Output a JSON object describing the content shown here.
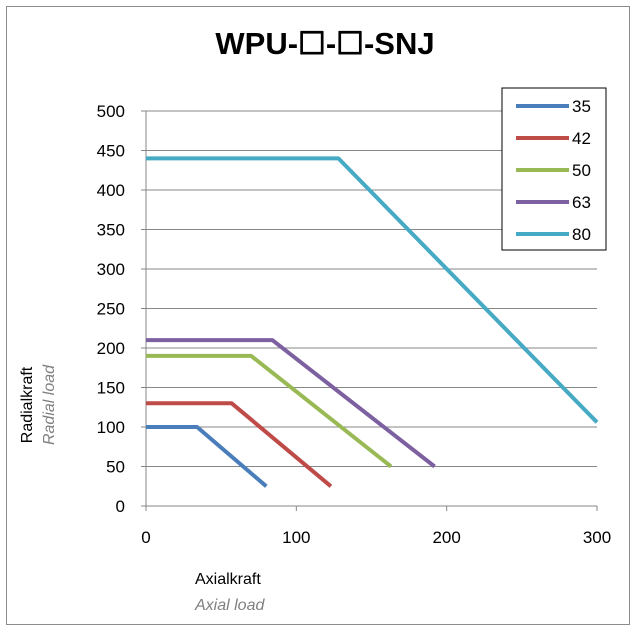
{
  "chart_data": {
    "type": "line",
    "title": "WPU-☐-☐-SNJ",
    "xlabel": "Axialkraft",
    "xlabel_secondary": "Axial load",
    "ylabel": "Radialkraft",
    "ylabel_secondary": "Radial load",
    "xlim": [
      0,
      300
    ],
    "ylim": [
      0,
      500
    ],
    "x_ticks": [
      0,
      100,
      200,
      300
    ],
    "y_ticks": [
      0,
      50,
      100,
      150,
      200,
      250,
      300,
      350,
      400,
      450,
      500
    ],
    "grid": "horizontal",
    "legend_position": "top-right",
    "series": [
      {
        "name": "35",
        "color": "#4a7ebb",
        "points": [
          [
            0,
            100
          ],
          [
            34,
            100
          ],
          [
            80,
            25
          ]
        ]
      },
      {
        "name": "42",
        "color": "#be4b48",
        "points": [
          [
            0,
            130
          ],
          [
            57,
            130
          ],
          [
            123,
            25
          ]
        ]
      },
      {
        "name": "50",
        "color": "#98b954",
        "points": [
          [
            0,
            190
          ],
          [
            70,
            190
          ],
          [
            163,
            50
          ]
        ]
      },
      {
        "name": "63",
        "color": "#7d60a0",
        "points": [
          [
            0,
            210
          ],
          [
            84,
            210
          ],
          [
            192,
            50
          ]
        ]
      },
      {
        "name": "80",
        "color": "#46aac5",
        "points": [
          [
            0,
            440
          ],
          [
            128,
            440
          ],
          [
            300,
            106
          ]
        ]
      }
    ]
  }
}
